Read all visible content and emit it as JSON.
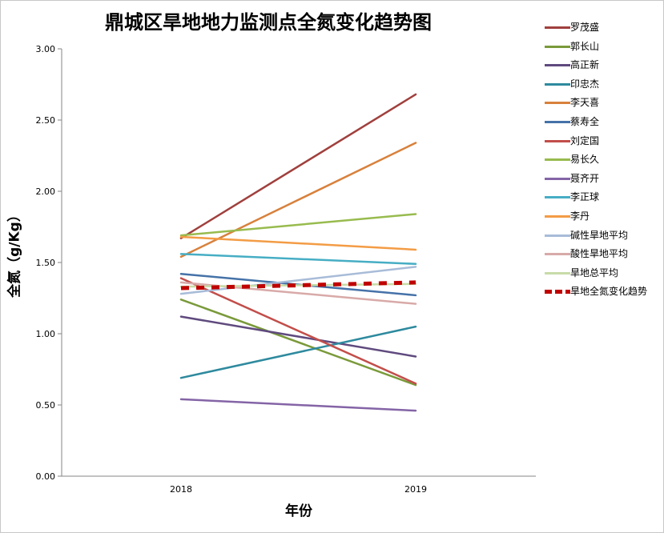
{
  "chart_data": {
    "type": "line",
    "title": "鼎城区旱地地力监测点全氮变化趋势图",
    "xlabel": "年份",
    "ylabel": "全氮（g/Kg）",
    "categories": [
      "2018",
      "2019"
    ],
    "ylim": [
      0,
      3
    ],
    "yticks": [
      "0.00",
      "0.50",
      "1.00",
      "1.50",
      "2.00",
      "2.50",
      "3.00"
    ],
    "grid": false,
    "legend_position": "right",
    "series": [
      {
        "name": "罗茂盛",
        "values": [
          1.67,
          2.68
        ],
        "color": "#a0403d"
      },
      {
        "name": "郭长山",
        "values": [
          1.24,
          0.64
        ],
        "color": "#7a9a3a"
      },
      {
        "name": "高正新",
        "values": [
          1.12,
          0.84
        ],
        "color": "#5f4a7e"
      },
      {
        "name": "印忠杰",
        "values": [
          0.69,
          1.05
        ],
        "color": "#2e8a9e"
      },
      {
        "name": "李天喜",
        "values": [
          1.54,
          2.34
        ],
        "color": "#d8813c"
      },
      {
        "name": "蔡寿全",
        "values": [
          1.42,
          1.27
        ],
        "color": "#4572a8"
      },
      {
        "name": "刘定国",
        "values": [
          1.39,
          0.65
        ],
        "color": "#c24e4a"
      },
      {
        "name": "易长久",
        "values": [
          1.69,
          1.84
        ],
        "color": "#98bb4e"
      },
      {
        "name": "聂齐开",
        "values": [
          0.54,
          0.46
        ],
        "color": "#8464a6"
      },
      {
        "name": "李正球",
        "values": [
          1.56,
          1.49
        ],
        "color": "#46aec4"
      },
      {
        "name": "李丹",
        "values": [
          1.68,
          1.59
        ],
        "color": "#f39c45"
      },
      {
        "name": "碱性旱地平均",
        "values": [
          1.28,
          1.47
        ],
        "color": "#a8bcd8"
      },
      {
        "name": "酸性旱地平均",
        "values": [
          1.36,
          1.21
        ],
        "color": "#d8aaa8"
      },
      {
        "name": "旱地总平均",
        "values": [
          1.33,
          1.35
        ],
        "color": "#c8dca8"
      },
      {
        "name": "旱地全氮变化趋势",
        "values": [
          1.32,
          1.36
        ],
        "color": "#c00000",
        "dashed": true
      }
    ]
  }
}
